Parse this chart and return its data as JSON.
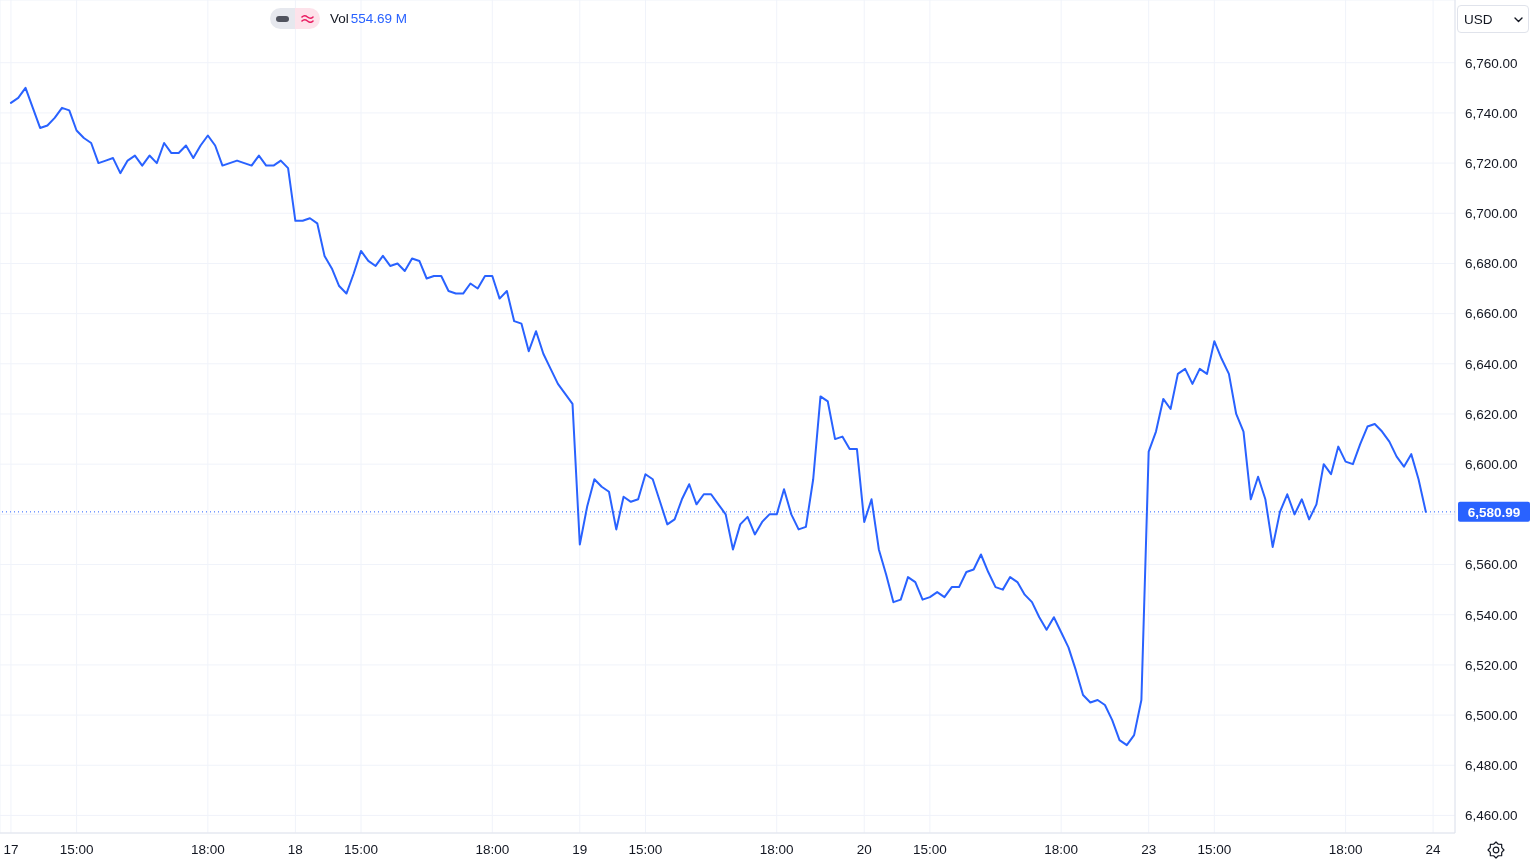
{
  "chart_data": {
    "type": "line",
    "categories": [
      "17",
      null,
      null,
      null,
      null,
      null,
      null,
      null,
      null,
      "15:00",
      null,
      null,
      null,
      null,
      null,
      null,
      null,
      null,
      null,
      null,
      null,
      null,
      null,
      null,
      null,
      null,
      null,
      "18:00",
      null,
      null,
      null,
      null,
      null,
      null,
      null,
      null,
      null,
      null,
      null,
      "18",
      null,
      null,
      null,
      null,
      null,
      null,
      null,
      null,
      "15:00",
      null,
      null,
      null,
      null,
      null,
      null,
      null,
      null,
      null,
      null,
      null,
      null,
      null,
      null,
      null,
      null,
      null,
      "18:00",
      null,
      null,
      null,
      null,
      null,
      null,
      null,
      null,
      null,
      null,
      null,
      "19",
      null,
      null,
      null,
      null,
      null,
      null,
      null,
      null,
      "15:00",
      null,
      null,
      null,
      null,
      null,
      null,
      null,
      null,
      null,
      null,
      null,
      null,
      null,
      null,
      null,
      null,
      null,
      "18:00",
      null,
      null,
      null,
      null,
      null,
      null,
      null,
      null,
      null,
      null,
      null,
      "20",
      null,
      null,
      null,
      null,
      null,
      null,
      null,
      null,
      "15:00",
      null,
      null,
      null,
      null,
      null,
      null,
      null,
      null,
      null,
      null,
      null,
      null,
      null,
      null,
      null,
      null,
      null,
      "18:00",
      null,
      null,
      null,
      null,
      null,
      null,
      null,
      null,
      null,
      null,
      null,
      "23",
      null,
      null,
      null,
      null,
      null,
      null,
      null,
      null,
      "15:00",
      null,
      null,
      null,
      null,
      null,
      null,
      null,
      null,
      null,
      null,
      null,
      null,
      null,
      null,
      null,
      null,
      null,
      "18:00",
      null,
      null,
      null,
      null,
      null,
      null,
      null,
      null,
      null,
      null,
      null,
      "24"
    ],
    "values": [
      6744,
      6746,
      6750,
      6742,
      6734,
      6735,
      6738,
      6742,
      6741,
      6733,
      6730,
      6728,
      6720,
      6721,
      6722,
      6716,
      6721,
      6723,
      6719,
      6723,
      6720,
      6728,
      6724,
      6724,
      6727,
      6722,
      6727,
      6731,
      6727,
      6719,
      6720,
      6721,
      6720,
      6719,
      6723,
      6719,
      6719,
      6721,
      6718,
      6697,
      6697,
      6698,
      6696,
      6683,
      6678,
      6671,
      6668,
      6676,
      6685,
      6681,
      6679,
      6683,
      6679,
      6680,
      6677,
      6682,
      6681,
      6674,
      6675,
      6675,
      6669,
      6668,
      6668,
      6672,
      6670,
      6675,
      6675,
      6666,
      6669,
      6657,
      6656,
      6645,
      6653,
      6644,
      6638,
      6632,
      6628,
      6624,
      6568,
      6583,
      6594,
      6591,
      6589,
      6574,
      6587,
      6585,
      6586,
      6596,
      6594,
      6585,
      6576,
      6578,
      6586,
      6592,
      6584,
      6588,
      6588,
      6584,
      6580,
      6566,
      6576,
      6579,
      6572,
      6577,
      6580,
      6580,
      6590,
      6580,
      6574,
      6575,
      6594,
      6627,
      6625,
      6610,
      6611,
      6606,
      6606,
      6577,
      6586,
      6566,
      6556,
      6545,
      6546,
      6555,
      6553,
      6546,
      6547,
      6549,
      6547,
      6551,
      6551,
      6557,
      6558,
      6564,
      6557,
      6551,
      6550,
      6555,
      6553,
      6548,
      6545,
      6539,
      6534,
      6539,
      6533,
      6527,
      6518,
      6508,
      6505,
      6506,
      6504,
      6498,
      6490,
      6488,
      6492,
      6506,
      6605,
      6613,
      6626,
      6622,
      6636,
      6638,
      6632,
      6638,
      6636,
      6649,
      6642,
      6636,
      6620,
      6613,
      6586,
      6595,
      6586,
      6567,
      6581,
      6588,
      6580,
      6586,
      6578,
      6584,
      6600,
      6596,
      6607,
      6601,
      6600,
      6608,
      6615,
      6616,
      6613,
      6609,
      6603,
      6599,
      6604,
      6594,
      6580.99,
      null
    ],
    "color": "#2962ff",
    "ylim": [
      6453,
      6785
    ],
    "yticks": [
      {
        "value": 6460,
        "label": "6,460.00"
      },
      {
        "value": 6480,
        "label": "6,480.00"
      },
      {
        "value": 6500,
        "label": "6,500.00"
      },
      {
        "value": 6520,
        "label": "6,520.00"
      },
      {
        "value": 6540,
        "label": "6,540.00"
      },
      {
        "value": 6560,
        "label": "6,560.00"
      },
      {
        "value": 6580,
        "label": null
      },
      {
        "value": 6600,
        "label": "6,600.00"
      },
      {
        "value": 6620,
        "label": "6,620.00"
      },
      {
        "value": 6640,
        "label": "6,640.00"
      },
      {
        "value": 6660,
        "label": "6,660.00"
      },
      {
        "value": 6680,
        "label": "6,680.00"
      },
      {
        "value": 6700,
        "label": "6,700.00"
      },
      {
        "value": 6720,
        "label": "6,720.00"
      },
      {
        "value": 6740,
        "label": "6,740.00"
      },
      {
        "value": 6760,
        "label": "6,760.00"
      }
    ],
    "grid": true,
    "ref_lines": [
      {
        "axis": "y",
        "value": 6580.99,
        "label": "6,580.99",
        "color": "#2962ff",
        "line_style": "dotted"
      }
    ],
    "annotations": [
      "Vol",
      "554.69 M",
      "USD"
    ]
  }
}
